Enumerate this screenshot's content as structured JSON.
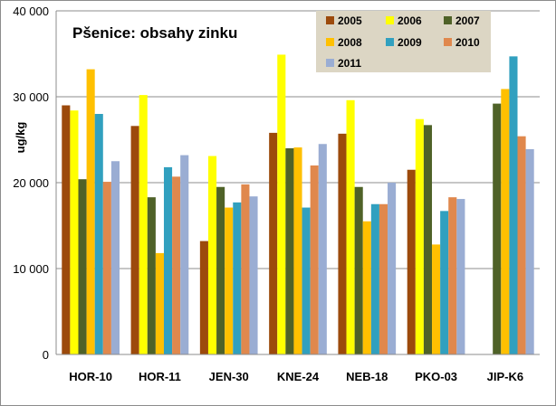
{
  "chart_data": {
    "type": "bar",
    "title": "Pšenice: obsahy zinku",
    "ylabel": "ug/kg",
    "xlabel": "",
    "ylim": [
      0,
      40000
    ],
    "yticks": [
      0,
      10000,
      20000,
      30000,
      40000
    ],
    "ytick_labels": [
      "0",
      "10 000",
      "20 000",
      "30 000",
      "40 000"
    ],
    "grid": true,
    "legend_position": "top-right",
    "categories": [
      "HOR-10",
      "HOR-11",
      "JEN-30",
      "KNE-24",
      "NEB-18",
      "PKO-03",
      "JIP-K6"
    ],
    "series": [
      {
        "name": "2005",
        "color": "#9c4a0c",
        "values": [
          29000,
          26600,
          13200,
          25800,
          25700,
          21500,
          null
        ]
      },
      {
        "name": "2006",
        "color": "#ffff00",
        "values": [
          28400,
          30200,
          23100,
          34900,
          29600,
          27400,
          null
        ]
      },
      {
        "name": "2007",
        "color": "#4f6228",
        "values": [
          20400,
          18300,
          19500,
          24000,
          19500,
          26700,
          29200
        ]
      },
      {
        "name": "2008",
        "color": "#ffc000",
        "values": [
          33200,
          11800,
          17100,
          24100,
          15500,
          12800,
          30900
        ]
      },
      {
        "name": "2009",
        "color": "#31a0bf",
        "values": [
          28000,
          21800,
          17700,
          17100,
          17500,
          16700,
          34700
        ]
      },
      {
        "name": "2010",
        "color": "#e0884d",
        "values": [
          20100,
          20700,
          19800,
          22000,
          17500,
          18300,
          25400
        ]
      },
      {
        "name": "2011",
        "color": "#9aadd3",
        "values": [
          22500,
          23200,
          18400,
          24500,
          20000,
          18100,
          23900
        ]
      }
    ]
  }
}
